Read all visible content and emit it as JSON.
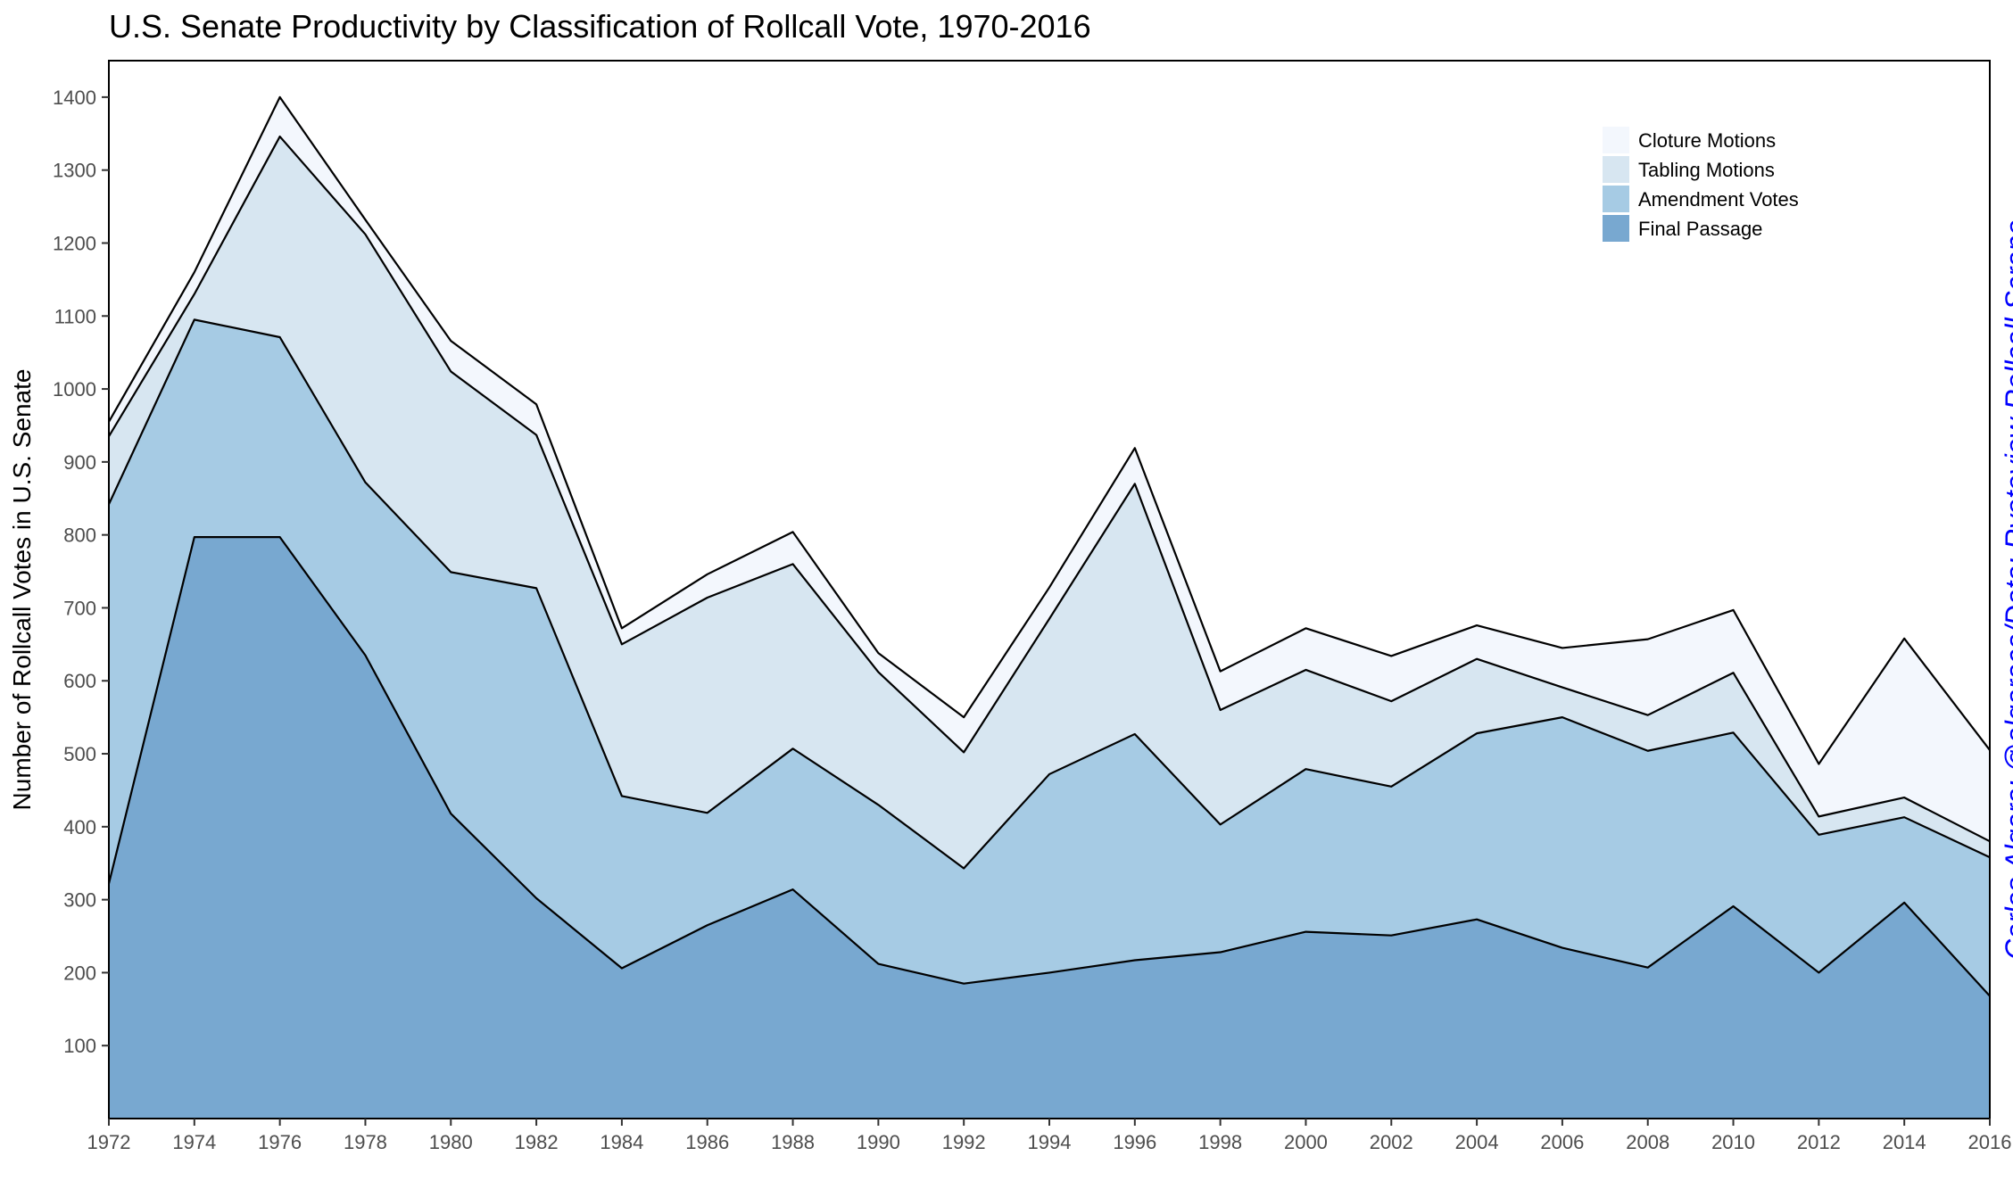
{
  "chart_data": {
    "type": "area",
    "stacked": true,
    "title": "U.S. Senate Productivity by Classification of Rollcall Vote, 1970-2016",
    "ylabel": "Number of Rollcall Votes in U.S. Senate",
    "xlabel": "",
    "xlim": [
      1972,
      2016
    ],
    "ylim": [
      0,
      1450
    ],
    "yticks": [
      100,
      200,
      300,
      400,
      500,
      600,
      700,
      800,
      900,
      1000,
      1100,
      1200,
      1300,
      1400
    ],
    "x": [
      1972,
      1974,
      1976,
      1978,
      1980,
      1982,
      1984,
      1986,
      1988,
      1990,
      1992,
      1994,
      1996,
      1998,
      2000,
      2002,
      2004,
      2006,
      2008,
      2010,
      2012,
      2014,
      2016
    ],
    "series": [
      {
        "name": "Final Passage",
        "color": "#78a8d0",
        "values": [
          322,
          797,
          797,
          635,
          418,
          302,
          206,
          265,
          314,
          212,
          185,
          200,
          217,
          228,
          256,
          251,
          273,
          234,
          207,
          291,
          200,
          296,
          168
        ]
      },
      {
        "name": "Amendment Votes",
        "color": "#a6cbe4",
        "values": [
          520,
          298,
          274,
          237,
          331,
          425,
          236,
          154,
          193,
          218,
          158,
          272,
          310,
          175,
          223,
          204,
          255,
          316,
          297,
          238,
          189,
          117,
          190
        ]
      },
      {
        "name": "Tabling Motions",
        "color": "#d7e6f1",
        "values": [
          93,
          35,
          275,
          340,
          275,
          210,
          208,
          295,
          253,
          182,
          159,
          213,
          343,
          157,
          136,
          117,
          102,
          41,
          49,
          82,
          25,
          27,
          22
        ]
      },
      {
        "name": "Cloture Motions",
        "color": "#f3f7fd",
        "values": [
          20,
          30,
          54,
          20,
          42,
          42,
          22,
          32,
          44,
          26,
          48,
          43,
          49,
          53,
          57,
          62,
          46,
          54,
          104,
          86,
          72,
          218,
          125
        ]
      }
    ],
    "legend": "top-right",
    "grid": false,
    "caption": "Carlos Algara: @algaraca/Data: Rvoteview Rollcall Scrape",
    "caption_color": "#0000ff"
  }
}
